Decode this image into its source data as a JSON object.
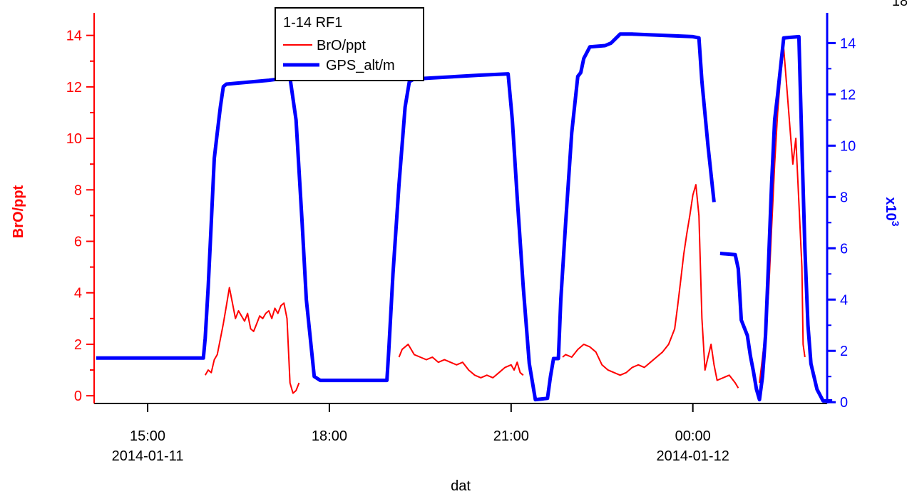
{
  "chart_data": {
    "type": "line",
    "title": "",
    "legend": {
      "title": "1-14 RF1",
      "placement": "top-center",
      "entries": [
        "BrO/ppt",
        "GPS_alt/m"
      ]
    },
    "xlabel": "dat",
    "x_ticks": [
      {
        "hours": 15,
        "label": "15:00",
        "sublabel": "2014-01-11"
      },
      {
        "hours": 18,
        "label": "18:00",
        "sublabel": ""
      },
      {
        "hours": 21,
        "label": "21:00",
        "sublabel": ""
      },
      {
        "hours": 24,
        "label": "00:00",
        "sublabel": "2014-01-12"
      }
    ],
    "xlim": [
      "2014-01-11 14:07",
      "2014-01-12 02:13"
    ],
    "left_axis": {
      "label": "BrO/ppt",
      "color": "#ff0000",
      "ylim": [
        -0.3,
        14.6
      ],
      "ticks": [
        "0",
        "2",
        "4",
        "6",
        "8",
        "10",
        "12",
        "14"
      ]
    },
    "right_axis": {
      "label": "x10",
      "exponent": "3",
      "color": "#0000ff",
      "ylim": [
        -0.05,
        14.9
      ],
      "ticks": [
        "0",
        "2",
        "4",
        "6",
        "8",
        "10",
        "12",
        "14"
      ],
      "corner_label": "18"
    },
    "series": [
      {
        "name": "BrO/ppt",
        "axis": "left",
        "color": "#ff0000",
        "segments": [
          [
            [
              15.95,
              0.8
            ],
            [
              16.0,
              1.0
            ],
            [
              16.05,
              0.9
            ],
            [
              16.1,
              1.4
            ],
            [
              16.15,
              1.6
            ],
            [
              16.2,
              2.2
            ],
            [
              16.25,
              2.8
            ],
            [
              16.3,
              3.5
            ],
            [
              16.35,
              4.2
            ],
            [
              16.4,
              3.6
            ],
            [
              16.45,
              3.0
            ],
            [
              16.5,
              3.3
            ],
            [
              16.55,
              3.1
            ],
            [
              16.6,
              2.9
            ],
            [
              16.65,
              3.2
            ],
            [
              16.7,
              2.6
            ],
            [
              16.75,
              2.5
            ],
            [
              16.8,
              2.8
            ],
            [
              16.85,
              3.1
            ],
            [
              16.9,
              3.0
            ],
            [
              16.95,
              3.2
            ],
            [
              17.0,
              3.3
            ],
            [
              17.05,
              3.0
            ],
            [
              17.1,
              3.4
            ],
            [
              17.15,
              3.2
            ],
            [
              17.2,
              3.5
            ],
            [
              17.25,
              3.6
            ],
            [
              17.3,
              3.0
            ],
            [
              17.35,
              0.5
            ],
            [
              17.4,
              0.1
            ],
            [
              17.45,
              0.2
            ],
            [
              17.5,
              0.5
            ]
          ],
          [
            [
              19.15,
              1.5
            ],
            [
              19.2,
              1.8
            ],
            [
              19.3,
              2.0
            ],
            [
              19.4,
              1.6
            ],
            [
              19.5,
              1.5
            ],
            [
              19.6,
              1.4
            ],
            [
              19.7,
              1.5
            ],
            [
              19.8,
              1.3
            ],
            [
              19.9,
              1.4
            ],
            [
              20.0,
              1.3
            ],
            [
              20.1,
              1.2
            ],
            [
              20.2,
              1.3
            ],
            [
              20.3,
              1.0
            ],
            [
              20.4,
              0.8
            ],
            [
              20.5,
              0.7
            ],
            [
              20.6,
              0.8
            ],
            [
              20.7,
              0.7
            ],
            [
              20.8,
              0.9
            ],
            [
              20.9,
              1.1
            ],
            [
              21.0,
              1.2
            ],
            [
              21.05,
              1.0
            ],
            [
              21.1,
              1.3
            ],
            [
              21.15,
              0.9
            ],
            [
              21.2,
              0.8
            ]
          ],
          [
            [
              21.85,
              1.5
            ],
            [
              21.9,
              1.6
            ],
            [
              22.0,
              1.5
            ],
            [
              22.1,
              1.8
            ],
            [
              22.2,
              2.0
            ],
            [
              22.3,
              1.9
            ],
            [
              22.4,
              1.7
            ],
            [
              22.5,
              1.2
            ],
            [
              22.6,
              1.0
            ],
            [
              22.7,
              0.9
            ],
            [
              22.8,
              0.8
            ],
            [
              22.9,
              0.9
            ],
            [
              23.0,
              1.1
            ],
            [
              23.1,
              1.2
            ],
            [
              23.2,
              1.1
            ],
            [
              23.3,
              1.3
            ],
            [
              23.4,
              1.5
            ],
            [
              23.5,
              1.7
            ],
            [
              23.6,
              2.0
            ],
            [
              23.7,
              2.6
            ],
            [
              23.75,
              3.5
            ],
            [
              23.8,
              4.5
            ],
            [
              23.85,
              5.5
            ],
            [
              23.9,
              6.3
            ],
            [
              23.95,
              7.0
            ],
            [
              24.0,
              7.8
            ],
            [
              24.05,
              8.2
            ],
            [
              24.1,
              7.0
            ],
            [
              24.15,
              3.0
            ],
            [
              24.2,
              1.0
            ],
            [
              24.25,
              1.5
            ],
            [
              24.3,
              2.0
            ],
            [
              24.35,
              1.2
            ],
            [
              24.4,
              0.6
            ],
            [
              24.5,
              0.7
            ],
            [
              24.6,
              0.8
            ],
            [
              24.7,
              0.5
            ],
            [
              24.75,
              0.3
            ]
          ],
          [
            [
              25.1,
              0.5
            ],
            [
              25.15,
              1.5
            ],
            [
              25.2,
              2.5
            ],
            [
              25.25,
              4.0
            ],
            [
              25.3,
              6.5
            ],
            [
              25.35,
              9.0
            ],
            [
              25.4,
              11.0
            ],
            [
              25.45,
              12.5
            ],
            [
              25.5,
              13.5
            ],
            [
              25.55,
              12.0
            ],
            [
              25.6,
              10.5
            ],
            [
              25.65,
              9.0
            ],
            [
              25.7,
              10.0
            ],
            [
              25.75,
              7.5
            ],
            [
              25.8,
              5.0
            ],
            [
              25.82,
              2.0
            ],
            [
              25.85,
              1.5
            ]
          ]
        ]
      },
      {
        "name": "GPS_alt/m",
        "axis": "right",
        "color": "#0000ff",
        "segments": [
          [
            [
              14.15,
              1.72
            ],
            [
              15.92,
              1.72
            ],
            [
              15.95,
              2.5
            ],
            [
              16.0,
              4.5
            ],
            [
              16.05,
              7.0
            ],
            [
              16.1,
              9.5
            ],
            [
              16.15,
              10.5
            ],
            [
              16.2,
              11.5
            ],
            [
              16.25,
              12.3
            ],
            [
              16.3,
              12.4
            ],
            [
              17.0,
              12.55
            ],
            [
              17.35,
              12.65
            ],
            [
              17.45,
              11.0
            ],
            [
              17.55,
              7.0
            ],
            [
              17.62,
              4.0
            ],
            [
              17.65,
              3.3
            ],
            [
              17.75,
              1.0
            ],
            [
              17.85,
              0.85
            ],
            [
              18.95,
              0.85
            ],
            [
              18.98,
              2.0
            ],
            [
              19.05,
              5.0
            ],
            [
              19.15,
              8.5
            ],
            [
              19.25,
              11.5
            ],
            [
              19.32,
              12.5
            ],
            [
              19.4,
              12.6
            ],
            [
              20.5,
              12.75
            ],
            [
              20.95,
              12.8
            ],
            [
              21.02,
              11.0
            ],
            [
              21.1,
              8.0
            ],
            [
              21.2,
              4.5
            ],
            [
              21.3,
              1.5
            ],
            [
              21.4,
              0.1
            ],
            [
              21.6,
              0.15
            ],
            [
              21.65,
              1.0
            ],
            [
              21.7,
              1.7
            ],
            [
              21.78,
              1.7
            ],
            [
              21.82,
              4.0
            ],
            [
              21.9,
              7.0
            ],
            [
              22.0,
              10.5
            ],
            [
              22.1,
              12.7
            ],
            [
              22.15,
              12.85
            ],
            [
              22.2,
              13.4
            ],
            [
              22.3,
              13.85
            ],
            [
              22.55,
              13.9
            ],
            [
              22.65,
              14.0
            ],
            [
              22.8,
              14.35
            ],
            [
              23.0,
              14.35
            ],
            [
              24.0,
              14.25
            ],
            [
              24.1,
              14.2
            ],
            [
              24.15,
              12.5
            ],
            [
              24.25,
              10.0
            ],
            [
              24.35,
              7.8
            ]
          ],
          [
            [
              24.45,
              5.8
            ],
            [
              24.7,
              5.75
            ],
            [
              24.75,
              5.2
            ],
            [
              24.8,
              3.2
            ],
            [
              24.9,
              2.6
            ],
            [
              24.95,
              1.8
            ],
            [
              25.0,
              1.2
            ],
            [
              25.05,
              0.5
            ],
            [
              25.1,
              0.1
            ],
            [
              25.15,
              1.0
            ],
            [
              25.2,
              2.6
            ],
            [
              25.25,
              5.5
            ],
            [
              25.3,
              8.5
            ],
            [
              25.35,
              11.0
            ],
            [
              25.4,
              12.0
            ],
            [
              25.5,
              14.2
            ],
            [
              25.75,
              14.25
            ],
            [
              25.8,
              10.0
            ],
            [
              25.85,
              6.0
            ],
            [
              25.9,
              3.0
            ],
            [
              25.95,
              1.5
            ],
            [
              26.05,
              0.5
            ],
            [
              26.15,
              0.05
            ],
            [
              26.3,
              0.05
            ]
          ]
        ]
      }
    ]
  }
}
